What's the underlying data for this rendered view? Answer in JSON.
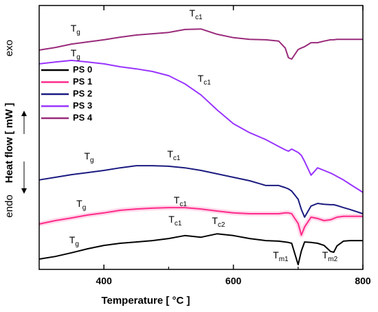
{
  "chart_data": {
    "type": "line",
    "xlabel": "Temperature [ °C ]",
    "ylabel": "Heat flow [ mW ]",
    "exo_label": "exo",
    "endo_label": "endo",
    "x": [
      300,
      325,
      350,
      375,
      400,
      425,
      450,
      475,
      500,
      525,
      550,
      575,
      600,
      625,
      650,
      670,
      680,
      685,
      690,
      700,
      705,
      710,
      720,
      730,
      740,
      750,
      755,
      760,
      770,
      780,
      800
    ],
    "xlim": [
      300,
      800
    ],
    "xticks": [
      400,
      600,
      800
    ],
    "ylim": [
      0,
      100
    ],
    "legend": "upper left",
    "series": [
      {
        "name": "PS 0",
        "color": "#000000",
        "values": [
          3.9,
          4.9,
          6.3,
          7.8,
          9.1,
          9.9,
          10.4,
          10.9,
          11.7,
          12.8,
          12.2,
          13.5,
          12.8,
          11.7,
          10.9,
          10.7,
          10.4,
          10.2,
          9.9,
          1.8,
          7.0,
          10.4,
          10.2,
          9.9,
          9.1,
          6.8,
          6.5,
          8.9,
          10.7,
          10.9,
          10.9
        ]
      },
      {
        "name": "PS 1",
        "color": "#ff2a8a",
        "values": [
          17.2,
          18.5,
          19.5,
          20.6,
          21.4,
          22.4,
          22.9,
          23.2,
          23.4,
          23.4,
          22.9,
          22.1,
          21.4,
          21.1,
          21.1,
          21.1,
          21.4,
          21.4,
          21.1,
          17.4,
          13.0,
          16.1,
          19.8,
          19.3,
          18.5,
          18.8,
          19.3,
          19.8,
          20.1,
          20.1,
          20.1
        ]
      },
      {
        "name": "PS 2",
        "color": "#1a1a80",
        "values": [
          33.9,
          34.9,
          35.9,
          36.7,
          37.5,
          38.5,
          39.3,
          39.3,
          39.1,
          38.5,
          37.5,
          36.2,
          34.9,
          33.6,
          31.8,
          31.8,
          31.0,
          30.5,
          29.7,
          26.6,
          22.7,
          19.8,
          24.0,
          25.0,
          24.7,
          24.5,
          24.5,
          24.2,
          23.4,
          22.7,
          21.1
        ]
      },
      {
        "name": "PS 3",
        "color": "#9933ff",
        "values": [
          77.9,
          78.6,
          79.2,
          78.6,
          77.9,
          76.8,
          76.0,
          75.0,
          73.4,
          70.3,
          66.1,
          60.4,
          55.2,
          51.8,
          49.2,
          46.6,
          45.3,
          44.8,
          45.6,
          44.3,
          43.2,
          40.9,
          35.7,
          38.5,
          37.5,
          36.5,
          35.9,
          35.2,
          33.9,
          32.3,
          29.2
        ]
      },
      {
        "name": "PS 4",
        "color": "#992a7a",
        "values": [
          83.1,
          84.1,
          85.4,
          86.2,
          87.0,
          88.0,
          88.8,
          89.3,
          89.8,
          90.9,
          91.1,
          89.1,
          87.8,
          87.2,
          87.0,
          86.5,
          83.9,
          80.2,
          79.7,
          83.3,
          83.9,
          84.4,
          85.9,
          85.9,
          86.5,
          87.0,
          87.0,
          87.2,
          87.2,
          87.2,
          87.2
        ]
      }
    ],
    "annotations": [
      {
        "text": "T",
        "sub": "g",
        "x": 356,
        "y": 91.1
      },
      {
        "text": "T",
        "sub": "c1",
        "x": 542,
        "y": 96.9
      },
      {
        "text": "T",
        "sub": "g",
        "x": 356,
        "y": 81.8
      },
      {
        "text": "T",
        "sub": "c1",
        "x": 555,
        "y": 72.1
      },
      {
        "text": "T",
        "sub": "g",
        "x": 377,
        "y": 42.7
      },
      {
        "text": "T",
        "sub": "c1",
        "x": 508,
        "y": 43.5
      },
      {
        "text": "T",
        "sub": "g",
        "x": 365,
        "y": 24.7
      },
      {
        "text": "T",
        "sub": "c1",
        "x": 518,
        "y": 26.0
      },
      {
        "text": "T",
        "sub": "c1",
        "x": 510,
        "y": 18.8
      },
      {
        "text": "T",
        "sub": "c2",
        "x": 577,
        "y": 18.2
      },
      {
        "text": "T",
        "sub": "g",
        "x": 354,
        "y": 10.9
      },
      {
        "text": "T",
        "sub": "m1",
        "x": 673,
        "y": 5.2
      },
      {
        "text": "T",
        "sub": "m2",
        "x": 749,
        "y": 5.2
      }
    ]
  }
}
